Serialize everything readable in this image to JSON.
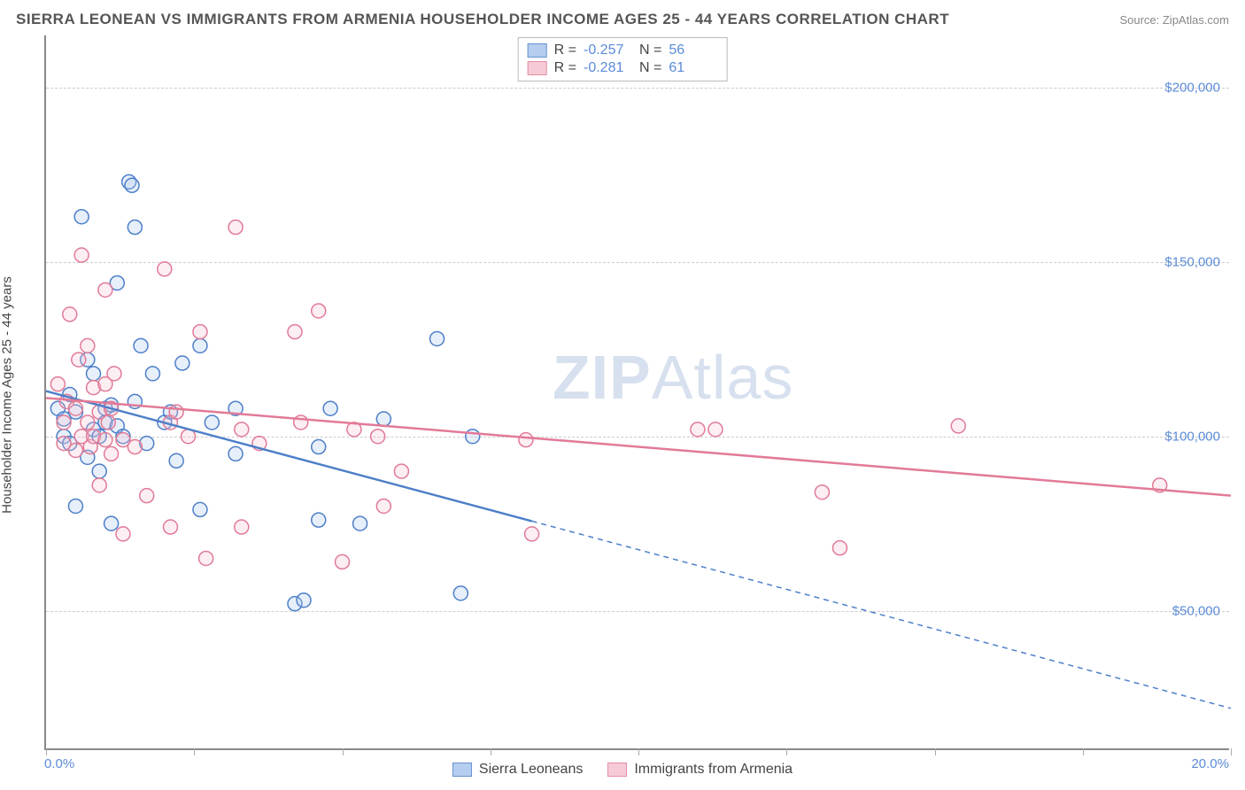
{
  "header": {
    "title": "SIERRA LEONEAN VS IMMIGRANTS FROM ARMENIA HOUSEHOLDER INCOME AGES 25 - 44 YEARS CORRELATION CHART",
    "source_prefix": "Source: ",
    "source": "ZipAtlas.com"
  },
  "watermark": {
    "bold": "ZIP",
    "rest": "Atlas"
  },
  "chart": {
    "type": "scatter",
    "ylabel": "Householder Income Ages 25 - 44 years",
    "xlim": [
      0,
      20
    ],
    "ylim": [
      10000,
      215000
    ],
    "x_ticks": [
      0,
      2.5,
      5,
      7.5,
      10,
      12.5,
      15,
      17.5,
      20
    ],
    "x_min_label": "0.0%",
    "x_max_label": "20.0%",
    "y_gridlines": [
      {
        "value": 50000,
        "label": "$50,000"
      },
      {
        "value": 100000,
        "label": "$100,000"
      },
      {
        "value": 150000,
        "label": "$150,000"
      },
      {
        "value": 200000,
        "label": "$200,000"
      }
    ],
    "background_color": "#ffffff",
    "grid_color": "#cccccc",
    "axis_color": "#888888",
    "tick_label_color": "#5b8bd8",
    "marker_radius": 8,
    "marker_stroke_width": 1.5,
    "marker_fill_opacity": 0.28,
    "trend_line_width": 2.5,
    "series": [
      {
        "name": "Sierra Leoneans",
        "color_stroke": "#4d7fc9",
        "color_fill": "#a9c5ed",
        "R": "-0.257",
        "N": "56",
        "trend": {
          "x1": 0,
          "y1": 113000,
          "x2": 20,
          "y2": 22000,
          "solid_until_x": 8.2
        },
        "points": [
          [
            0.2,
            108000
          ],
          [
            0.3,
            100000
          ],
          [
            0.3,
            105000
          ],
          [
            0.4,
            98000
          ],
          [
            0.4,
            112000
          ],
          [
            0.5,
            107000
          ],
          [
            0.5,
            80000
          ],
          [
            0.6,
            163000
          ],
          [
            0.7,
            122000
          ],
          [
            0.7,
            94000
          ],
          [
            0.8,
            118000
          ],
          [
            0.8,
            102000
          ],
          [
            0.9,
            100000
          ],
          [
            0.9,
            90000
          ],
          [
            1.0,
            104000
          ],
          [
            1.0,
            108000
          ],
          [
            1.1,
            109000
          ],
          [
            1.1,
            75000
          ],
          [
            1.2,
            144000
          ],
          [
            1.2,
            103000
          ],
          [
            1.3,
            100000
          ],
          [
            1.4,
            173000
          ],
          [
            1.45,
            172000
          ],
          [
            1.5,
            160000
          ],
          [
            1.5,
            110000
          ],
          [
            1.6,
            126000
          ],
          [
            1.7,
            98000
          ],
          [
            1.8,
            118000
          ],
          [
            2.0,
            104000
          ],
          [
            2.1,
            107000
          ],
          [
            2.2,
            93000
          ],
          [
            2.3,
            121000
          ],
          [
            2.6,
            126000
          ],
          [
            2.6,
            79000
          ],
          [
            2.8,
            104000
          ],
          [
            3.2,
            108000
          ],
          [
            3.2,
            95000
          ],
          [
            4.2,
            52000
          ],
          [
            4.35,
            53000
          ],
          [
            4.6,
            76000
          ],
          [
            4.6,
            97000
          ],
          [
            4.8,
            108000
          ],
          [
            5.3,
            75000
          ],
          [
            5.7,
            105000
          ],
          [
            6.6,
            128000
          ],
          [
            7.0,
            55000
          ],
          [
            7.2,
            100000
          ]
        ]
      },
      {
        "name": "Immigrants from Armenia",
        "color_stroke": "#e27a97",
        "color_fill": "#f5c2d0",
        "R": "-0.281",
        "N": "61",
        "trend": {
          "x1": 0,
          "y1": 111000,
          "x2": 20,
          "y2": 83000,
          "solid_until_x": 20
        },
        "points": [
          [
            0.2,
            115000
          ],
          [
            0.3,
            104000
          ],
          [
            0.3,
            98000
          ],
          [
            0.35,
            110000
          ],
          [
            0.4,
            135000
          ],
          [
            0.5,
            108000
          ],
          [
            0.5,
            96000
          ],
          [
            0.55,
            122000
          ],
          [
            0.6,
            152000
          ],
          [
            0.6,
            100000
          ],
          [
            0.7,
            126000
          ],
          [
            0.7,
            104000
          ],
          [
            0.75,
            97000
          ],
          [
            0.8,
            114000
          ],
          [
            0.8,
            100000
          ],
          [
            0.9,
            107000
          ],
          [
            0.9,
            86000
          ],
          [
            1.0,
            142000
          ],
          [
            1.0,
            115000
          ],
          [
            1.0,
            99000
          ],
          [
            1.05,
            104000
          ],
          [
            1.1,
            108000
          ],
          [
            1.1,
            95000
          ],
          [
            1.15,
            118000
          ],
          [
            1.3,
            99000
          ],
          [
            1.3,
            72000
          ],
          [
            1.5,
            97000
          ],
          [
            1.7,
            83000
          ],
          [
            2.0,
            148000
          ],
          [
            2.1,
            104000
          ],
          [
            2.1,
            74000
          ],
          [
            2.2,
            107000
          ],
          [
            2.4,
            100000
          ],
          [
            2.6,
            130000
          ],
          [
            2.7,
            65000
          ],
          [
            3.2,
            160000
          ],
          [
            3.3,
            102000
          ],
          [
            3.3,
            74000
          ],
          [
            3.6,
            98000
          ],
          [
            4.2,
            130000
          ],
          [
            4.3,
            104000
          ],
          [
            4.6,
            136000
          ],
          [
            5.0,
            64000
          ],
          [
            5.2,
            102000
          ],
          [
            5.6,
            100000
          ],
          [
            5.7,
            80000
          ],
          [
            6.0,
            90000
          ],
          [
            8.1,
            99000
          ],
          [
            8.2,
            72000
          ],
          [
            11.0,
            102000
          ],
          [
            11.3,
            102000
          ],
          [
            13.1,
            84000
          ],
          [
            13.4,
            68000
          ],
          [
            15.4,
            103000
          ],
          [
            18.8,
            86000
          ]
        ]
      }
    ]
  },
  "legend_top": {
    "R_label": "R =",
    "N_label": "N ="
  },
  "legend_bottom": {}
}
